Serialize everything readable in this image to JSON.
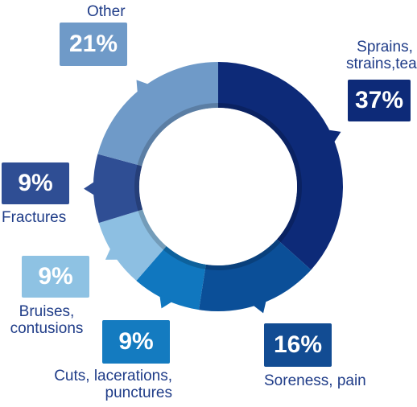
{
  "chart_data": {
    "type": "pie",
    "title": "",
    "slices": [
      {
        "label": "Sprains,\nstrains,tears",
        "label_lines": [
          "Sprains,",
          "strains,tears"
        ],
        "value": 37,
        "value_label": "37%",
        "color": "#0d2a78",
        "badge_color": "#0d2a78"
      },
      {
        "label": "Soreness, pain",
        "label_lines": [
          "Soreness, pain"
        ],
        "value": 16,
        "value_label": "16%",
        "color": "#0b4f98",
        "badge_color": "#124c93"
      },
      {
        "label": "Cuts, lacerations, punctures",
        "label_lines": [
          "Cuts, lacerations,",
          "punctures"
        ],
        "value": 9,
        "value_label": "9%",
        "color": "#1077bf",
        "badge_color": "#147bc0"
      },
      {
        "label": "Bruises, contusions",
        "label_lines": [
          "Bruises,",
          "contusions"
        ],
        "value": 9,
        "value_label": "9%",
        "color": "#8dbfe2",
        "badge_color": "#8ec2e3"
      },
      {
        "label": "Fractures",
        "label_lines": [
          "Fractures"
        ],
        "value": 9,
        "value_label": "9%",
        "color": "#2f4e94",
        "badge_color": "#2f4e94"
      },
      {
        "label": "Other",
        "label_lines": [
          "Other"
        ],
        "value": 21,
        "value_label": "21%",
        "color": "#6f9ac8",
        "badge_color": "#6f9ac8"
      }
    ],
    "legend": "none"
  }
}
